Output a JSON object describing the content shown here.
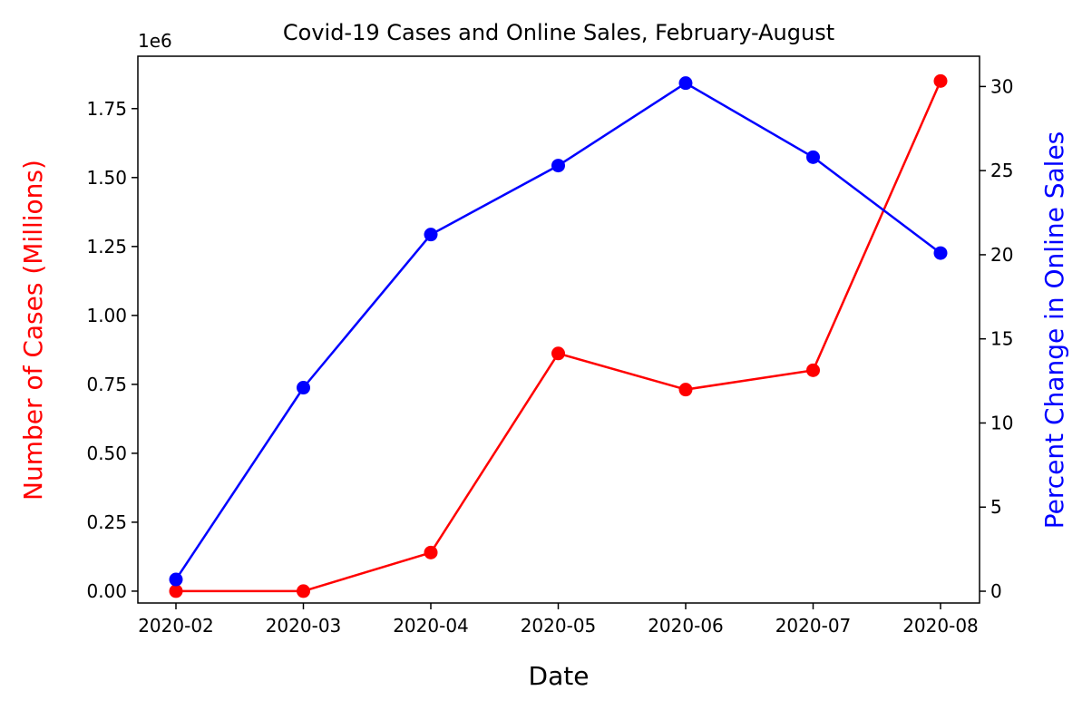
{
  "chart_data": {
    "type": "line",
    "title": "Covid-19 Cases and Online Sales, February-August",
    "xlabel": "Date",
    "x": [
      "2020-02",
      "2020-03",
      "2020-04",
      "2020-05",
      "2020-06",
      "2020-07",
      "2020-08"
    ],
    "y_left": {
      "label": "Number of Cases (Millions)",
      "label_color": "#ff0000",
      "offset_text": "1e6",
      "ticks": [
        "0.00",
        "0.25",
        "0.50",
        "0.75",
        "1.00",
        "1.25",
        "1.50",
        "1.75"
      ],
      "ylim": [
        -43000,
        1940000
      ]
    },
    "y_right": {
      "label": "Percent Change in Online Sales",
      "label_color": "#0000ff",
      "ticks": [
        "0",
        "5",
        "10",
        "15",
        "20",
        "25",
        "30"
      ],
      "ylim": [
        -0.7,
        31.8
      ]
    },
    "series": [
      {
        "axis": "left",
        "color": "#ff0000",
        "values": [
          0,
          0,
          140000,
          862000,
          731000,
          801000,
          1850000
        ]
      },
      {
        "axis": "right",
        "color": "#0000ff",
        "values": [
          0.7,
          12.1,
          21.2,
          25.3,
          30.2,
          25.8,
          20.1
        ]
      }
    ],
    "grid": false
  }
}
